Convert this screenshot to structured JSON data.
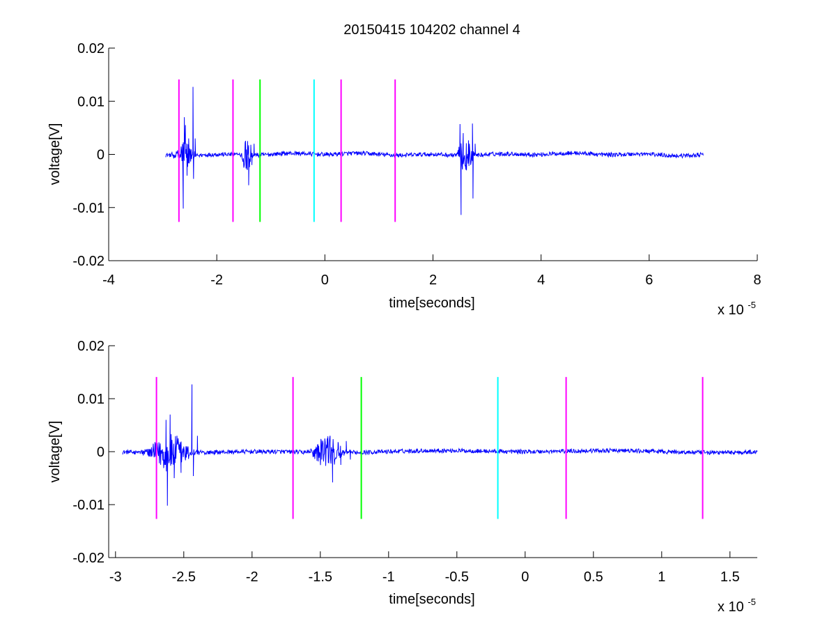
{
  "figure": {
    "title": "20150415 104202 channel 4",
    "colors": {
      "signal": "#0000ff",
      "magenta": "#ff00ff",
      "green": "#00ff00",
      "cyan": "#00ffff",
      "axis": "#000000",
      "background": "#ffffff"
    }
  },
  "chart_data": [
    {
      "type": "line",
      "title": "20150415 104202 channel 4",
      "xlabel": "time[seconds]",
      "ylabel": "voltage[V]",
      "x_multiplier_label": "x 10",
      "x_multiplier_exponent": "-5",
      "xlim": [
        -4,
        8
      ],
      "ylim": [
        -0.02,
        0.02
      ],
      "x_ticks": [
        -4,
        -2,
        0,
        2,
        4,
        6,
        8
      ],
      "x_tick_labels": [
        "-4",
        "-2",
        "0",
        "2",
        "4",
        "6",
        "8"
      ],
      "y_ticks": [
        -0.02,
        -0.01,
        0,
        0.01,
        0.02
      ],
      "y_tick_labels": [
        "-0.02",
        "-0.01",
        "0",
        "0.01",
        "0.02"
      ],
      "grid": false,
      "signal_range": [
        -2.95,
        7.0
      ],
      "signal_noise_amplitude": 0.0004,
      "bursts": [
        {
          "center": -2.6,
          "width": 0.22,
          "peaks": [
            [
              -2.6,
              0.007
            ],
            [
              -2.62,
              -0.0102
            ],
            [
              -2.58,
              0.0055
            ],
            [
              -2.55,
              -0.004
            ],
            [
              -2.52,
              0.003
            ],
            [
              -2.44,
              0.0127
            ],
            [
              -2.43,
              -0.0046
            ],
            [
              -2.4,
              0.003
            ]
          ]
        },
        {
          "center": -1.45,
          "width": 0.15,
          "peaks": [
            [
              -1.43,
              0.0025
            ],
            [
              -1.41,
              -0.0058
            ],
            [
              -1.37,
              0.0018
            ],
            [
              -1.35,
              -0.002
            ],
            [
              -1.31,
              0.002
            ]
          ]
        },
        {
          "center": 2.6,
          "width": 0.2,
          "peaks": [
            [
              2.5,
              0.0057
            ],
            [
              2.52,
              -0.0114
            ],
            [
              2.56,
              0.004
            ],
            [
              2.62,
              -0.003
            ],
            [
              2.73,
              0.0058
            ],
            [
              2.74,
              -0.0083
            ],
            [
              2.78,
              0.002
            ]
          ]
        }
      ],
      "markers": [
        {
          "x": -2.7,
          "color": "magenta",
          "y_range": [
            -0.0127,
            0.0141
          ]
        },
        {
          "x": -1.7,
          "color": "magenta",
          "y_range": [
            -0.0127,
            0.0141
          ]
        },
        {
          "x": -1.2,
          "color": "green",
          "y_range": [
            -0.0127,
            0.0141
          ]
        },
        {
          "x": -0.2,
          "color": "cyan",
          "y_range": [
            -0.0127,
            0.0141
          ]
        },
        {
          "x": 0.3,
          "color": "magenta",
          "y_range": [
            -0.0127,
            0.0141
          ]
        },
        {
          "x": 1.3,
          "color": "magenta",
          "y_range": [
            -0.0127,
            0.0141
          ]
        }
      ]
    },
    {
      "type": "line",
      "title": "",
      "xlabel": "time[seconds]",
      "ylabel": "voltage[V]",
      "x_multiplier_label": "x 10",
      "x_multiplier_exponent": "-5",
      "xlim": [
        -3.05,
        1.7
      ],
      "ylim": [
        -0.02,
        0.02
      ],
      "x_ticks": [
        -3,
        -2.5,
        -2,
        -1.5,
        -1,
        -0.5,
        0,
        0.5,
        1,
        1.5
      ],
      "x_tick_labels": [
        "-3",
        "-2.5",
        "-2",
        "-1.5",
        "-1",
        "-0.5",
        "0",
        "0.5",
        "1",
        "1.5"
      ],
      "y_ticks": [
        -0.02,
        -0.01,
        0,
        0.01,
        0.02
      ],
      "y_tick_labels": [
        "-0.02",
        "-0.01",
        "0",
        "0.01",
        "0.02"
      ],
      "grid": false,
      "signal_range": [
        -2.95,
        1.7
      ],
      "signal_noise_amplitude": 0.0004,
      "bursts": [
        {
          "center": -2.6,
          "width": 0.22,
          "peaks": [
            [
              -2.63,
              0.006
            ],
            [
              -2.62,
              -0.0102
            ],
            [
              -2.6,
              0.007
            ],
            [
              -2.57,
              -0.005
            ],
            [
              -2.55,
              0.003
            ],
            [
              -2.52,
              -0.004
            ],
            [
              -2.44,
              0.0127
            ],
            [
              -2.43,
              -0.0046
            ],
            [
              -2.4,
              0.003
            ]
          ]
        },
        {
          "center": -1.45,
          "width": 0.15,
          "peaks": [
            [
              -1.45,
              0.0025
            ],
            [
              -1.41,
              -0.0058
            ],
            [
              -1.37,
              0.0018
            ],
            [
              -1.35,
              -0.0025
            ],
            [
              -1.31,
              0.002
            ],
            [
              -1.28,
              -0.0015
            ]
          ]
        }
      ],
      "markers": [
        {
          "x": -2.7,
          "color": "magenta",
          "y_range": [
            -0.0127,
            0.0141
          ]
        },
        {
          "x": -1.7,
          "color": "magenta",
          "y_range": [
            -0.0127,
            0.0141
          ]
        },
        {
          "x": -1.2,
          "color": "green",
          "y_range": [
            -0.0127,
            0.0141
          ]
        },
        {
          "x": -0.2,
          "color": "cyan",
          "y_range": [
            -0.0127,
            0.0141
          ]
        },
        {
          "x": 0.3,
          "color": "magenta",
          "y_range": [
            -0.0127,
            0.0141
          ]
        },
        {
          "x": 1.3,
          "color": "magenta",
          "y_range": [
            -0.0127,
            0.0141
          ]
        }
      ]
    }
  ]
}
